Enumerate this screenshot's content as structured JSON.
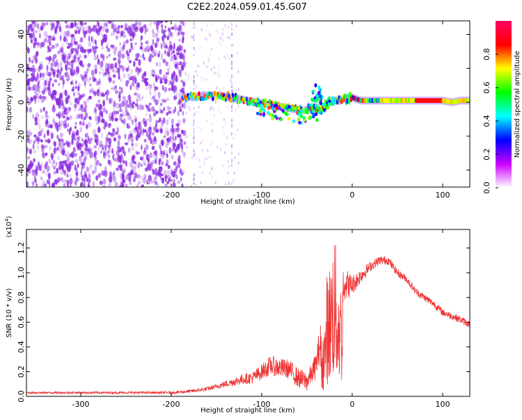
{
  "title": "C2E2.2024.059.01.45.G07",
  "chart_data": [
    {
      "type": "heatmap",
      "xlabel": "Height of straight line (km)",
      "ylabel": "Frequency (Hz)",
      "xlim": [
        -360,
        130
      ],
      "ylim": [
        -50,
        48
      ],
      "xticks": [
        -300,
        -200,
        -100,
        0,
        100
      ],
      "xtick_labels": [
        "-300",
        "-200",
        "-100",
        "0",
        "100"
      ],
      "yticks": [
        -40,
        -20,
        0,
        20,
        40
      ],
      "ytick_labels": [
        "-40",
        "-20",
        "0",
        "20",
        "40"
      ],
      "ridge": {
        "x": [
          -185,
          -175,
          -165,
          -155,
          -145,
          -135,
          -125,
          -115,
          -105,
          -95,
          -85,
          -75,
          -65,
          -55,
          -48,
          -42,
          -38,
          -34,
          -30,
          -26,
          -20,
          -14,
          -8,
          -4,
          0,
          4,
          10,
          20,
          40,
          60,
          80,
          100,
          110,
          120,
          130
        ],
        "y": [
          3,
          3,
          4,
          4,
          4,
          3,
          2,
          1,
          0,
          -1,
          -2,
          -3,
          -4,
          -5,
          -4,
          -3,
          -3,
          -4,
          -2,
          0,
          1,
          1,
          2,
          2,
          3,
          2,
          1,
          1,
          1,
          1,
          1,
          1,
          0,
          1,
          1
        ]
      },
      "colorbar": {
        "label": "Normalized spectral amplitude",
        "range": [
          0,
          1
        ],
        "ticks": [
          0.0,
          0.2,
          0.4,
          0.6,
          0.8
        ],
        "tick_labels": [
          "0.0",
          "0.2",
          "0.4",
          "0.6",
          "0.8"
        ],
        "colors": [
          "#ffffff",
          "#cc00ff",
          "#0000ff",
          "#00ffff",
          "#00ff00",
          "#ffff00",
          "#ff0000",
          "#ff0066"
        ]
      },
      "noise_color": "#8a2be2"
    },
    {
      "type": "line",
      "xlabel": "Height of straight line (km)",
      "ylabel": "SNR (10 * v/v)",
      "exponent_label": "(x10",
      "exponent_power": "4",
      "exponent_close": ")",
      "xlim": [
        -360,
        130
      ],
      "ylim": [
        0,
        1.35
      ],
      "xticks": [
        -300,
        -200,
        -100,
        0,
        100
      ],
      "xtick_labels": [
        "-300",
        "-200",
        "-100",
        "0",
        "100"
      ],
      "yticks": [
        0.0,
        0.2,
        0.4,
        0.6,
        0.8,
        1.0,
        1.2
      ],
      "ytick_labels": [
        "0.0",
        "0.2",
        "0.4",
        "0.6",
        "0.8",
        "1.0",
        "1.2"
      ],
      "line_color": "#ee3333",
      "envelope": {
        "x": [
          -360,
          -250,
          -200,
          -180,
          -160,
          -140,
          -130,
          -120,
          -110,
          -100,
          -90,
          -80,
          -70,
          -60,
          -50,
          -45,
          -40,
          -35,
          -30,
          -28,
          -24,
          -22,
          -20,
          -18,
          -15,
          -12,
          -10,
          -5,
          0,
          10,
          20,
          30,
          40,
          50,
          60,
          70,
          80,
          90,
          100,
          110,
          120,
          130
        ],
        "y": [
          0.03,
          0.03,
          0.03,
          0.04,
          0.06,
          0.1,
          0.12,
          0.14,
          0.15,
          0.2,
          0.25,
          0.23,
          0.22,
          0.15,
          0.12,
          0.18,
          0.25,
          0.45,
          0.55,
          0.9,
          1.0,
          1.1,
          1.25,
          1.1,
          0.9,
          0.85,
          0.95,
          0.9,
          0.9,
          0.98,
          1.05,
          1.1,
          1.1,
          1.0,
          0.95,
          0.85,
          0.8,
          0.75,
          0.68,
          0.65,
          0.62,
          0.58
        ]
      },
      "noise_amplitude": {
        "x": [
          -360,
          -200,
          -150,
          -110,
          -90,
          -60,
          -45,
          -35,
          -30,
          -25,
          -22,
          -20,
          -18,
          -15,
          -12,
          -8,
          0,
          20,
          60,
          130
        ],
        "y": [
          0.008,
          0.01,
          0.02,
          0.05,
          0.08,
          0.08,
          0.08,
          0.15,
          0.22,
          0.28,
          0.35,
          0.35,
          0.3,
          0.25,
          0.22,
          0.15,
          0.08,
          0.04,
          0.03,
          0.03
        ]
      }
    }
  ]
}
